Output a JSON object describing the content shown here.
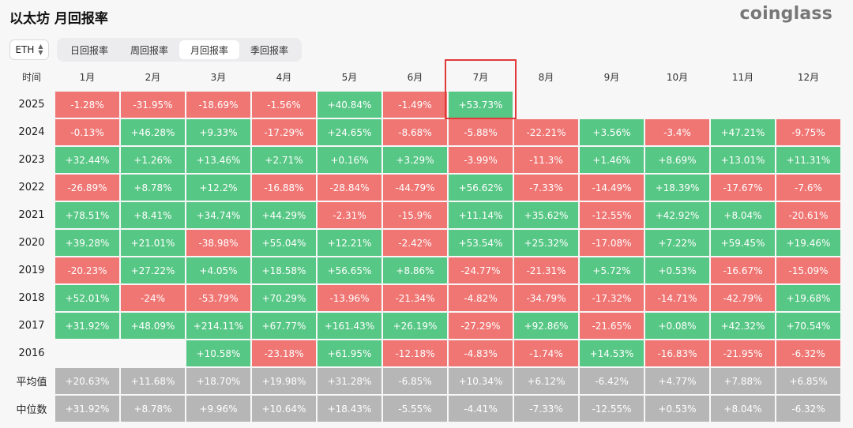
{
  "header": {
    "title": "以太坊 月回报率",
    "brand": "coinglass"
  },
  "asset_selector": {
    "value": "ETH"
  },
  "tabs": [
    {
      "label": "日回报率",
      "active": false
    },
    {
      "label": "周回报率",
      "active": false
    },
    {
      "label": "月回报率",
      "active": true
    },
    {
      "label": "季回报率",
      "active": false
    }
  ],
  "table": {
    "corner_label": "时间",
    "columns": [
      "1月",
      "2月",
      "3月",
      "4月",
      "5月",
      "6月",
      "7月",
      "8月",
      "9月",
      "10月",
      "11月",
      "12月"
    ],
    "highlighted_column": "7月",
    "colors": {
      "positive": "#57c785",
      "negative": "#f07674",
      "summary": "#b6b6b6",
      "highlight_border": "#e03a3a"
    },
    "rows": [
      {
        "label": "2025",
        "values": [
          "-1.28%",
          "-31.95%",
          "-18.69%",
          "-1.56%",
          "+40.84%",
          "-1.49%",
          "+53.73%",
          "",
          "",
          "",
          "",
          ""
        ]
      },
      {
        "label": "2024",
        "values": [
          "-0.13%",
          "+46.28%",
          "+9.33%",
          "-17.29%",
          "+24.65%",
          "-8.68%",
          "-5.88%",
          "-22.21%",
          "+3.56%",
          "-3.4%",
          "+47.21%",
          "-9.75%"
        ]
      },
      {
        "label": "2023",
        "values": [
          "+32.44%",
          "+1.26%",
          "+13.46%",
          "+2.71%",
          "+0.16%",
          "+3.29%",
          "-3.99%",
          "-11.3%",
          "+1.46%",
          "+8.69%",
          "+13.01%",
          "+11.31%"
        ]
      },
      {
        "label": "2022",
        "values": [
          "-26.89%",
          "+8.78%",
          "+12.2%",
          "-16.88%",
          "-28.84%",
          "-44.79%",
          "+56.62%",
          "-7.33%",
          "-14.49%",
          "+18.39%",
          "-17.67%",
          "-7.6%"
        ]
      },
      {
        "label": "2021",
        "values": [
          "+78.51%",
          "+8.41%",
          "+34.74%",
          "+44.29%",
          "-2.31%",
          "-15.9%",
          "+11.14%",
          "+35.62%",
          "-12.55%",
          "+42.92%",
          "+8.04%",
          "-20.61%"
        ]
      },
      {
        "label": "2020",
        "values": [
          "+39.28%",
          "+21.01%",
          "-38.98%",
          "+55.04%",
          "+12.21%",
          "-2.42%",
          "+53.54%",
          "+25.32%",
          "-17.08%",
          "+7.22%",
          "+59.45%",
          "+19.46%"
        ]
      },
      {
        "label": "2019",
        "values": [
          "-20.23%",
          "+27.22%",
          "+4.05%",
          "+18.58%",
          "+56.65%",
          "+8.86%",
          "-24.77%",
          "-21.31%",
          "+5.72%",
          "+0.53%",
          "-16.67%",
          "-15.09%"
        ]
      },
      {
        "label": "2018",
        "values": [
          "+52.01%",
          "-24%",
          "-53.79%",
          "+70.29%",
          "-13.96%",
          "-21.34%",
          "-4.82%",
          "-34.79%",
          "-17.32%",
          "-14.71%",
          "-42.79%",
          "+19.68%"
        ]
      },
      {
        "label": "2017",
        "values": [
          "+31.92%",
          "+48.09%",
          "+214.11%",
          "+67.77%",
          "+161.43%",
          "+26.19%",
          "-27.29%",
          "+92.86%",
          "-21.65%",
          "+0.08%",
          "+42.32%",
          "+70.54%"
        ]
      },
      {
        "label": "2016",
        "values": [
          "",
          "",
          "+10.58%",
          "-23.18%",
          "+61.95%",
          "-12.18%",
          "-4.83%",
          "-1.74%",
          "+14.53%",
          "-16.83%",
          "-21.95%",
          "-6.32%"
        ]
      }
    ],
    "summary_rows": [
      {
        "label": "平均值",
        "values": [
          "+20.63%",
          "+11.68%",
          "+18.70%",
          "+19.98%",
          "+31.28%",
          "-6.85%",
          "+10.34%",
          "+6.12%",
          "-6.42%",
          "+4.77%",
          "+7.88%",
          "+6.85%"
        ]
      },
      {
        "label": "中位数",
        "values": [
          "+31.92%",
          "+8.78%",
          "+9.96%",
          "+10.64%",
          "+18.43%",
          "-5.55%",
          "-4.41%",
          "-7.33%",
          "-12.55%",
          "+0.53%",
          "+8.04%",
          "-6.32%"
        ]
      }
    ]
  }
}
